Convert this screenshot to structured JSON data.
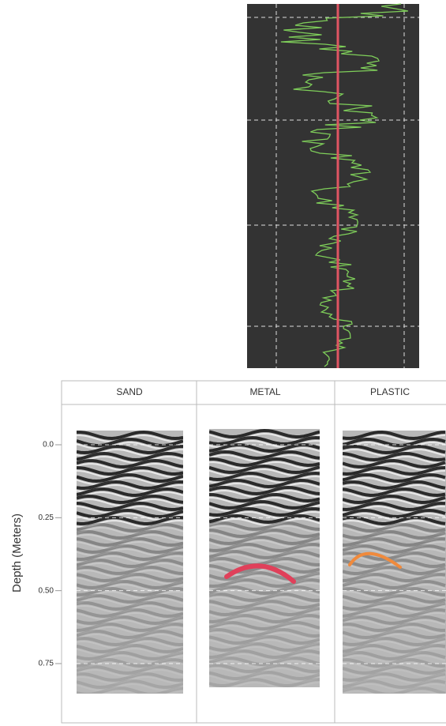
{
  "axis_label": "Depth (Meters)",
  "panels": [
    "SAND",
    "METAL",
    "PLASTIC"
  ],
  "depth_ylim": [
    0,
    0.75
  ],
  "depth_ticks": [
    {
      "value": 0,
      "label": "0.0"
    },
    {
      "value": 0.25,
      "label": "0.25"
    },
    {
      "value": 0.5,
      "label": "0.50"
    },
    {
      "value": 0.75,
      "label": "0.75"
    }
  ]
}
